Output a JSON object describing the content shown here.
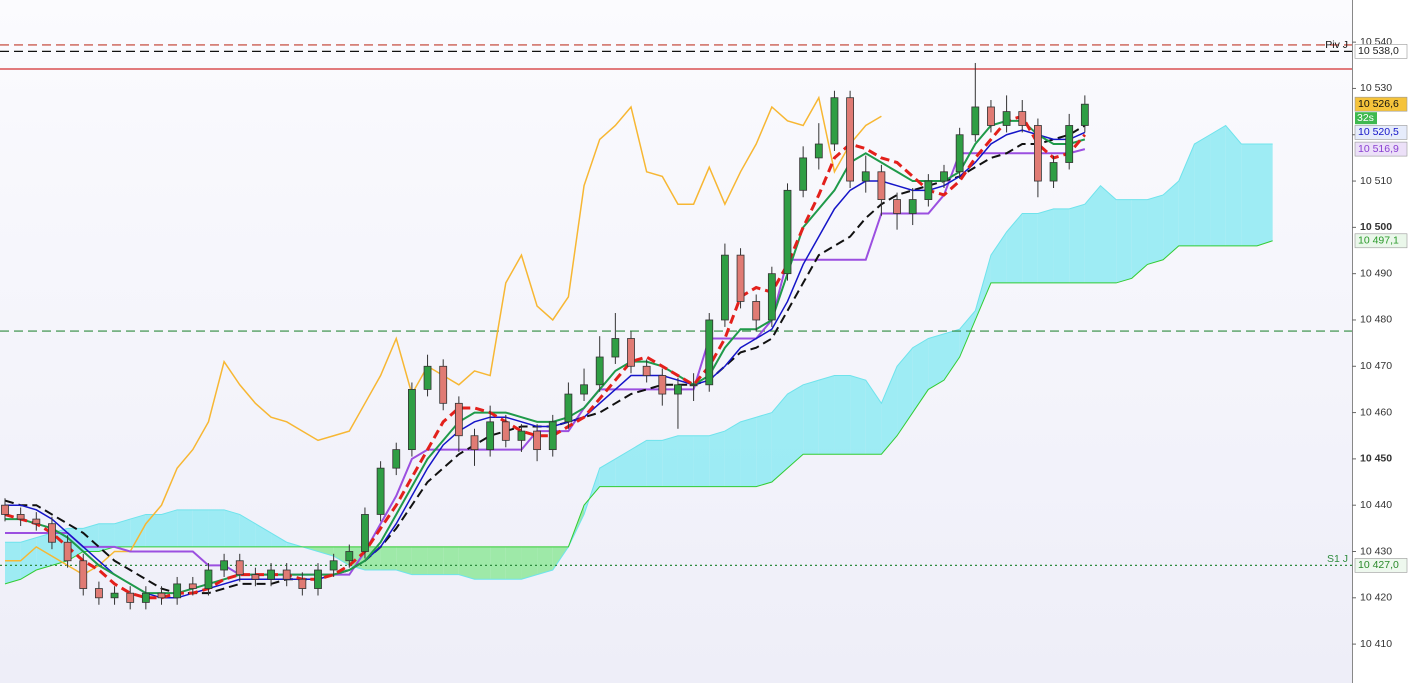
{
  "chart_data": {
    "type": "candlestick",
    "ylim": [
      10401.6,
      10549.1
    ],
    "yticks": [
      {
        "value": 10410,
        "label": "10 410"
      },
      {
        "value": 10420,
        "label": "10 420"
      },
      {
        "value": 10430,
        "label": "10 430"
      },
      {
        "value": 10440,
        "label": "10 440"
      },
      {
        "value": 10450,
        "label": "10 450",
        "bold": true
      },
      {
        "value": 10460,
        "label": "10 460"
      },
      {
        "value": 10470,
        "label": "10 470"
      },
      {
        "value": 10480,
        "label": "10 480"
      },
      {
        "value": 10490,
        "label": "10 490"
      },
      {
        "value": 10500,
        "label": "10 500",
        "bold": true
      },
      {
        "value": 10510,
        "label": "10 510"
      },
      {
        "value": 10520,
        "label": "10 520"
      },
      {
        "value": 10530,
        "label": "10 530"
      },
      {
        "value": 10540,
        "label": "10 540"
      }
    ],
    "candles": {
      "up_color": "#2f9e44",
      "down_color": "#e07b74",
      "open": [
        10440,
        10438,
        10437,
        10436,
        10432,
        10428,
        10422,
        10420,
        10421,
        10419,
        10421,
        10420,
        10423,
        10422,
        10426,
        10428,
        10425,
        10424,
        10426,
        10424,
        10422,
        10426,
        10428,
        10430,
        10438,
        10448,
        10452,
        10465,
        10470,
        10462,
        10455,
        10452,
        10458,
        10454,
        10456,
        10452,
        10458,
        10464,
        10466,
        10472,
        10476,
        10470,
        10468,
        10464,
        10466,
        10466,
        10480,
        10494,
        10484,
        10480,
        10490,
        10508,
        10515,
        10518,
        10528,
        10510,
        10512,
        10506,
        10503,
        10506,
        10510,
        10512,
        10520,
        10526,
        10522,
        10525,
        10522,
        10510,
        10514,
        10522
      ],
      "high": [
        10441.5,
        10439.5,
        10438.5,
        10437.5,
        10433.5,
        10429.5,
        10423.5,
        10422.5,
        10422.5,
        10422.5,
        10422.5,
        10424.5,
        10424.5,
        10427.5,
        10429.5,
        10429.5,
        10426.5,
        10427.5,
        10427.5,
        10425.5,
        10427.5,
        10429.5,
        10431.5,
        10439.5,
        10449.5,
        10453.5,
        10466.5,
        10472.5,
        10471.5,
        10463.5,
        10456.5,
        10461.5,
        10459.5,
        10457.5,
        10457.5,
        10459.5,
        10466.5,
        10469.5,
        10476.5,
        10481.5,
        10477.5,
        10471.5,
        10469.5,
        10467.5,
        10468.5,
        10481.5,
        10496.5,
        10495.5,
        10485.5,
        10491.5,
        10509.5,
        10517.5,
        10522.5,
        10529.5,
        10529.5,
        10515.5,
        10513.5,
        10507.5,
        10508.5,
        10511.5,
        10513.5,
        10521.5,
        10535.5,
        10527.5,
        10528.5,
        10527.5,
        10523.5,
        10515.5,
        10524.5,
        10528.5
      ],
      "low": [
        10436.5,
        10435.5,
        10434.5,
        10430.5,
        10426.5,
        10420.5,
        10418.5,
        10418.5,
        10417.5,
        10417.5,
        10418.5,
        10418.5,
        10420.5,
        10420.5,
        10424.5,
        10423.5,
        10422.5,
        10422.5,
        10422.5,
        10420.5,
        10420.5,
        10424.5,
        10426.5,
        10428.5,
        10436.5,
        10446.5,
        10450.5,
        10463.5,
        10460.5,
        10451.5,
        10448.5,
        10450.5,
        10452.5,
        10451.5,
        10449.5,
        10450.5,
        10456.5,
        10462.5,
        10464.5,
        10470.5,
        10468.5,
        10466.5,
        10461.5,
        10456.5,
        10462.5,
        10464.5,
        10478.5,
        10482.5,
        10477.5,
        10478.5,
        10488.5,
        10506.5,
        10512.5,
        10516.5,
        10508.5,
        10507.5,
        10502.5,
        10499.5,
        10500.5,
        10504.5,
        10508.5,
        10510.5,
        10518.5,
        10520.5,
        10520.5,
        10520.5,
        10506.5,
        10508.5,
        10512.5,
        10520.5
      ],
      "close": [
        10438,
        10437,
        10436,
        10432,
        10428,
        10422,
        10420,
        10421,
        10419,
        10421,
        10420,
        10423,
        10422,
        10426,
        10428,
        10425,
        10424,
        10426,
        10424,
        10422,
        10426,
        10428,
        10430,
        10438,
        10448,
        10452,
        10465,
        10470,
        10462,
        10455,
        10452,
        10458,
        10454,
        10456,
        10452,
        10458,
        10464,
        10466,
        10472,
        10476,
        10470,
        10468,
        10464,
        10466,
        10466,
        10480,
        10494,
        10484,
        10480,
        10490,
        10508,
        10515,
        10518,
        10528,
        10510,
        10512,
        10506,
        10503,
        10506,
        10510,
        10512,
        10520,
        10526,
        10522,
        10525,
        10522,
        10510,
        10514,
        10522,
        10526.6
      ]
    },
    "cloud": {
      "span_a": {
        "color": "#6fe3ec",
        "values": [
          10432,
          10432,
          10433,
          10434,
          10435,
          10435,
          10436,
          10436,
          10437,
          10438,
          10438,
          10439,
          10439,
          10439,
          10439,
          10438,
          10436,
          10434,
          10432,
          10431,
          10430,
          10429,
          10427,
          10426,
          10426,
          10426,
          10425,
          10425,
          10425,
          10425,
          10424,
          10424,
          10424,
          10424,
          10425,
          10426,
          10431,
          10438,
          10448,
          10450,
          10452,
          10454,
          10454,
          10455,
          10455,
          10455,
          10456,
          10458,
          10459,
          10460,
          10464,
          10466,
          10467,
          10468,
          10468,
          10467,
          10462,
          10470,
          10474,
          10476,
          10477,
          10478,
          10482,
          10494,
          10499,
          10503,
          10503,
          10504,
          10504,
          10505,
          10509,
          10506,
          10506,
          10506,
          10507,
          10510,
          10518,
          10520,
          10522,
          10518,
          10518,
          10518
        ]
      },
      "span_b": {
        "color": "#33cc33",
        "values": [
          10423,
          10424,
          10426,
          10427,
          10428,
          10430,
          10430,
          10431,
          10431,
          10431,
          10431,
          10431,
          10431,
          10431,
          10431,
          10431,
          10431,
          10431,
          10431,
          10431,
          10431,
          10431,
          10431,
          10431,
          10431,
          10431,
          10431,
          10431,
          10431,
          10431,
          10431,
          10431,
          10431,
          10431,
          10431,
          10431,
          10431,
          10440,
          10444,
          10444,
          10444,
          10444,
          10444,
          10444,
          10444,
          10444,
          10444,
          10444,
          10444,
          10445,
          10448,
          10451,
          10451,
          10451,
          10451,
          10451,
          10451,
          10455,
          10460,
          10465,
          10467,
          10472,
          10480,
          10488,
          10488,
          10488,
          10488,
          10488,
          10488,
          10488,
          10488,
          10488,
          10489,
          10492,
          10493,
          10496,
          10496,
          10496,
          10496,
          10496,
          10496,
          10497.1
        ]
      },
      "bull_fill": "#8eeaf2",
      "bear_fill": "#8fe89a"
    },
    "series": [
      {
        "color": "#f7b733",
        "width": 1.5,
        "dash": "solid",
        "values": [
          10428,
          10428,
          10431,
          10429,
          10427,
          10425,
          10427,
          10430,
          10430,
          10436,
          10440,
          10448,
          10452,
          10458,
          10471,
          10466,
          10462,
          10459,
          10458,
          10456,
          10454,
          10455,
          10456,
          10462,
          10468,
          10476,
          10464,
          10470,
          10468,
          10466,
          10469,
          10468,
          10488,
          10494,
          10483,
          10480,
          10485,
          10509,
          10519,
          10522,
          10526,
          10512,
          10511,
          10505,
          10505,
          10513,
          10505,
          10512,
          10518,
          10526,
          10523,
          10522,
          10528,
          10512,
          10518,
          10522,
          10524,
          null,
          null,
          null,
          null,
          null,
          null,
          null,
          null,
          null,
          null,
          null,
          null,
          null
        ]
      },
      {
        "color": "#9b4fe0",
        "width": 2,
        "dash": "solid",
        "values": [
          10434,
          10434,
          10434,
          10434,
          10434,
          10431,
          10431,
          10431,
          10430,
          10430,
          10430,
          10430,
          10430,
          10427,
          10427,
          10425,
          10425,
          10425,
          10425,
          10425,
          10425,
          10425,
          10425,
          10430,
          10436,
          10442,
          10450,
          10452,
          10452,
          10452,
          10452,
          10452,
          10452,
          10452,
          10456,
          10456,
          10456,
          10461,
          10465,
          10465,
          10465,
          10465,
          10465,
          10465,
          10465,
          10476,
          10476,
          10476,
          10476,
          10480,
          10493,
          10493,
          10493,
          10493,
          10493,
          10493,
          10503,
          10503,
          10503,
          10503,
          10507,
          10516,
          10516,
          10516,
          10516,
          10516,
          10516,
          10516,
          10516,
          10516.9
        ]
      },
      {
        "color": "#111111",
        "width": 2,
        "dash": "dashed",
        "values": [
          10441,
          10440,
          10440,
          10438,
          10436,
          10434,
          10431,
          10428,
          10426,
          10424,
          10422,
          10421,
          10421,
          10421,
          10422,
          10423,
          10423,
          10423,
          10424,
          10424,
          10424,
          10425,
          10426,
          10428,
          10431,
          10435,
          10440,
          10445,
          10448,
          10451,
          10453,
          10455,
          10456,
          10457,
          10457,
          10457,
          10458,
          10459,
          10460,
          10462,
          10464,
          10465,
          10466,
          10466,
          10466,
          10467,
          10470,
          10473,
          10474,
          10476,
          10482,
          10488,
          10494,
          10496,
          10498,
          10502,
          10505,
          10507,
          10508,
          10509,
          10510,
          10511,
          10513,
          10515,
          10516,
          10518,
          10518,
          10519,
          10520,
          10522
        ]
      },
      {
        "color": "#1515c8",
        "width": 1.5,
        "dash": "solid",
        "values": [
          10440,
          10440,
          10439,
          10437,
          10434,
          10431,
          10428,
          10425,
          10423,
          10421,
          10420,
          10420,
          10421,
          10422,
          10423,
          10424,
          10424,
          10424,
          10424,
          10424,
          10424,
          10425,
          10426,
          10428,
          10431,
          10436,
          10442,
          10448,
          10453,
          10456,
          10458,
          10459,
          10459,
          10458,
          10457,
          10457,
          10458,
          10459,
          10462,
          10465,
          10468,
          10468,
          10468,
          10467,
          10466,
          10467,
          10470,
          10474,
          10476,
          10478,
          10484,
          10492,
          10498,
          10504,
          10508,
          10510,
          10510,
          10509,
          10508,
          10508,
          10509,
          10511,
          10514,
          10518,
          10520,
          10521,
          10520,
          10519,
          10519,
          10520.5
        ]
      },
      {
        "color": "#1f9a4a",
        "width": 2,
        "dash": "solid",
        "values": [
          10437,
          10437,
          10436,
          10435,
          10433,
          10430,
          10427,
          10425,
          10423,
          10421,
          10421,
          10421,
          10422,
          10423,
          10424,
          10425,
          10425,
          10425,
          10425,
          10425,
          10425,
          10425,
          10426,
          10428,
          10432,
          10438,
          10444,
          10450,
          10454,
          10458,
          10460,
          10460,
          10460,
          10459,
          10458,
          10458,
          10459,
          10461,
          10465,
          10469,
          10471,
          10471,
          10470,
          10468,
          10466,
          10468,
          10474,
          10478,
          10478,
          10480,
          10490,
          10500,
          10504,
          10508,
          10514,
          10516,
          10514,
          10512,
          10510,
          10510,
          10510,
          10512,
          10518,
          10522,
          10523,
          10523,
          10520,
          10518,
          10518,
          10519
        ]
      },
      {
        "color": "#e3201b",
        "width": 3,
        "dash": "dashed",
        "values": [
          10438,
          10437,
          10436,
          10434,
          10431,
          10428,
          10426,
          10423,
          10421,
          10420,
          10420,
          10421,
          10421,
          10422,
          10424,
          10425,
          10425,
          10425,
          10425,
          10424,
          10424,
          10425,
          10427,
          10430,
          10435,
          10440,
          10446,
          10452,
          10458,
          10461,
          10461,
          10460,
          10458,
          10456,
          10455,
          10455,
          10457,
          10459,
          10463,
          10467,
          10471,
          10472,
          10470,
          10468,
          10466,
          10470,
          10476,
          10485,
          10487,
          10486,
          10492,
          10500,
          10507,
          10515,
          10518,
          10517,
          10515,
          10514,
          10511,
          10508,
          10507,
          10510,
          10515,
          10519,
          10523,
          10524,
          10518,
          10515,
          10516,
          10520
        ]
      }
    ],
    "levels": [
      {
        "value": 10539.4,
        "color": "#c0392b",
        "dash": "dashed"
      },
      {
        "value": 10538.0,
        "color": "#111111",
        "dash": "dashed",
        "label": "Piv J"
      },
      {
        "value": 10534.2,
        "color": "#d32f2f",
        "dash": "solid"
      },
      {
        "value": 10477.6,
        "color": "#2e8b3e",
        "dash": "dashed"
      },
      {
        "value": 10427.0,
        "color": "#2e8b3e",
        "dash": "dotted",
        "label": "S1 J"
      }
    ],
    "axis_labels": [
      {
        "value": 10538.0,
        "label": "10 538,0",
        "color": "#222222",
        "background": "#ffffff"
      },
      {
        "value": 10526.6,
        "label": "10 526,6",
        "color": "#111111",
        "background": "#f5c33b"
      },
      {
        "value": 10520.5,
        "label": "10 520,5",
        "color": "#1515c8",
        "background": "#e6ecfb"
      },
      {
        "value": 10516.9,
        "label": "10 516,9",
        "color": "#8a3fd1",
        "background": "#ece0f8"
      },
      {
        "value": 10497.1,
        "label": "10 497,1",
        "color": "#2a9a2a",
        "background": "#eaf7ea"
      },
      {
        "value": 10427.0,
        "label": "10 427,0",
        "color": "#2a8a2a",
        "background": "#eef8ee"
      }
    ],
    "countdown": "32s"
  }
}
